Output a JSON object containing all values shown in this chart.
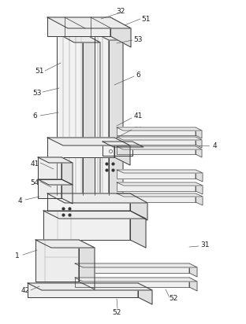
{
  "background_color": "#ffffff",
  "line_color": "#3a3a3a",
  "lw": 0.7,
  "tlw": 0.4,
  "figsize": [
    3.12,
    4.12
  ],
  "dpi": 100,
  "font_size": 6.5,
  "label_color": "#222222"
}
